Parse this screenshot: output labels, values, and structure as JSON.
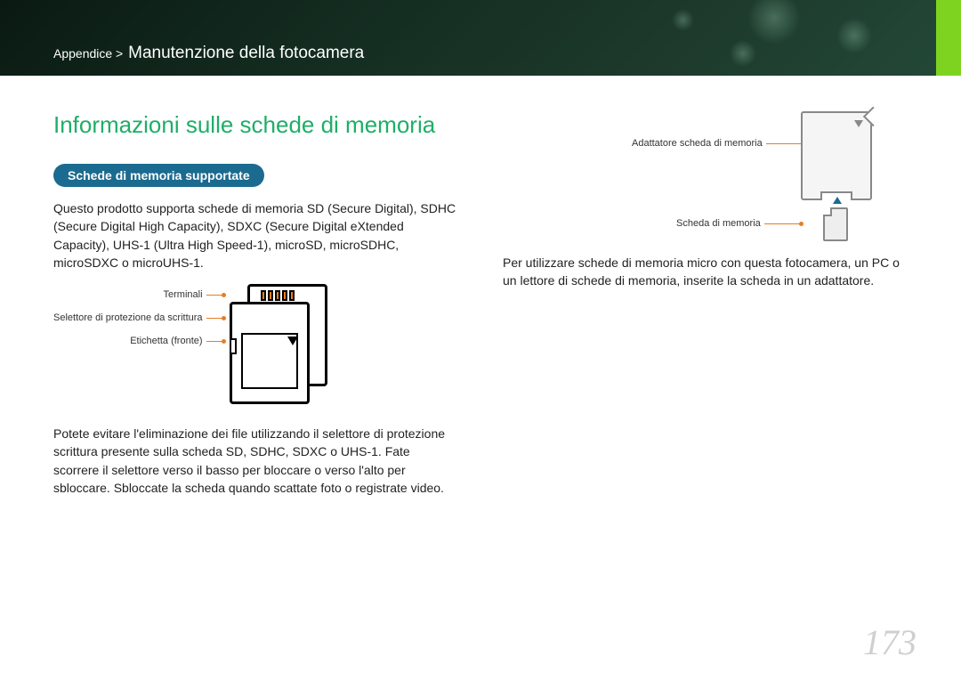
{
  "header": {
    "breadcrumb_prefix": "Appendice > ",
    "breadcrumb_section": "Manutenzione della fotocamera"
  },
  "left": {
    "title": "Informazioni sulle schede di memoria",
    "pill": "Schede di memoria supportate",
    "para1": "Questo prodotto supporta schede di memoria SD (Secure Digital), SDHC (Secure Digital High Capacity), SDXC (Secure Digital eXtended Capacity), UHS-1 (Ultra High Speed-1), microSD, microSDHC, microSDXC o microUHS-1.",
    "labels": {
      "terminals": "Terminali",
      "write_protect": "Selettore di protezione da scrittura",
      "label_front": "Etichetta (fronte)"
    },
    "para2": "Potete evitare l'eliminazione dei file utilizzando il selettore di protezione scrittura presente sulla scheda SD, SDHC, SDXC o UHS-1. Fate scorrere il selettore verso il basso per bloccare o verso l'alto per sbloccare. Sbloccate la scheda quando scattate foto o registrate video."
  },
  "right": {
    "labels": {
      "adapter": "Adattatore scheda di memoria",
      "card": "Scheda di memoria"
    },
    "para": "Per utilizzare schede di memoria micro con questa fotocamera, un PC o un lettore di schede di memoria, inserite la scheda in un adattatore."
  },
  "page_number": "173",
  "colors": {
    "accent_green": "#1fae68",
    "pill_blue": "#1a6b8f",
    "leader_orange": "#e67e22",
    "header_dark": "#152e22",
    "sidebar_green": "#7ed321",
    "pagenum_gray": "#cfcfcf"
  }
}
